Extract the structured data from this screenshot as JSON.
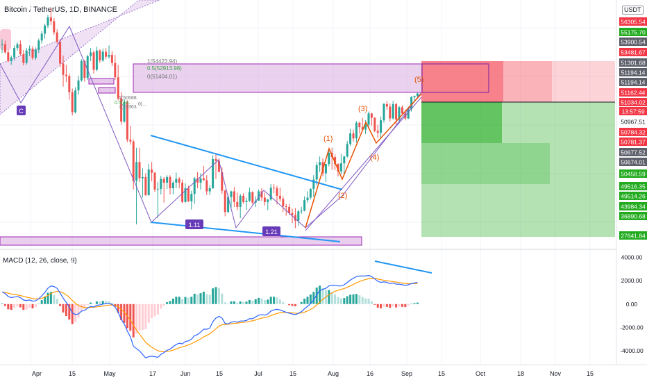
{
  "header": {
    "title": "Bitcoin / TetherUS, 1D, BINANCE",
    "currency_badge": "USDT"
  },
  "macd": {
    "title": "MACD (12, 26, close, 9)",
    "scale_labels": [
      "4000.00",
      "2000.00",
      "0.00",
      "-2000.00",
      "-4000.00"
    ]
  },
  "colors": {
    "up": "#26a69a",
    "down": "#ef5350",
    "macd_line": "#2962ff",
    "signal_line": "#ff9800",
    "zone": "#ce93d8",
    "trendline": "#2196f3",
    "wave": "#e65100",
    "badge": "#673ab7",
    "stop_zone": "#f23645",
    "target_zone": "#22ab1f"
  },
  "x_axis": {
    "labels": [
      "Apr",
      "15",
      "May",
      "17",
      "Jun",
      "15",
      "Jul",
      "15",
      "Aug",
      "16",
      "Sep",
      "15",
      "Oct",
      "18",
      "Nov",
      "15"
    ]
  },
  "price_scale": {
    "labels": [
      "56305.54",
      "55175.70",
      "53900.54",
      "53481.67",
      "51301.68",
      "51194.14",
      "51194.14",
      "51162.44",
      "51034.02",
      "13:57:59",
      "50967.51",
      "50784.32",
      "50781.37",
      "50677.52",
      "50674.01",
      "50458.59",
      "49516.35",
      "49514.26",
      "43984.34",
      "36890.68",
      "27641.84"
    ]
  },
  "fib": {
    "level_1": "1(54423.94)",
    "level_05": "0.5(52913.98)",
    "level_0": "0(51404.01)",
    "small_1": "1(50688.",
    "small_05": "0.5(49…",
    "small_0": "1(49363.",
    "small_0b": "0(…"
  },
  "waves": {
    "w1": "(1)",
    "w2": "(2)",
    "w3": "(3)",
    "w4": "(4)",
    "w5": "(5)"
  },
  "badges": {
    "c": "C",
    "ratio_a": "1.11",
    "ratio_b": "1.21"
  },
  "chart_data": {
    "type": "candlestick",
    "title": "Bitcoin / TetherUS, 1D, BINANCE",
    "interval": "1D",
    "ohlc": [
      [
        58800,
        59700,
        57500,
        58900
      ],
      [
        58900,
        59500,
        57400,
        57600
      ],
      [
        57600,
        58000,
        56000,
        56200
      ],
      [
        56200,
        57100,
        55600,
        56800
      ],
      [
        56800,
        58700,
        56300,
        58300
      ],
      [
        58300,
        59200,
        57900,
        58900
      ],
      [
        58900,
        59500,
        57100,
        57300
      ],
      [
        57300,
        58000,
        55500,
        55900
      ],
      [
        55900,
        58300,
        55600,
        57900
      ],
      [
        57900,
        58700,
        57000,
        58200
      ],
      [
        58200,
        58600,
        56400,
        56700
      ],
      [
        56700,
        58400,
        56400,
        58000
      ],
      [
        58000,
        59800,
        57500,
        59500
      ],
      [
        59500,
        61000,
        59000,
        60600
      ],
      [
        60600,
        62200,
        59800,
        61900
      ],
      [
        61900,
        63600,
        61500,
        63200
      ],
      [
        63200,
        64800,
        62000,
        62600
      ],
      [
        62600,
        63100,
        60400,
        60800
      ],
      [
        60800,
        61300,
        59000,
        59300
      ],
      [
        59300,
        59700,
        55200,
        55800
      ],
      [
        55800,
        57100,
        52100,
        54000
      ],
      [
        54000,
        55600,
        52800,
        53800
      ],
      [
        53800,
        54200,
        50000,
        51200
      ],
      [
        51200,
        51800,
        47500,
        48000
      ],
      [
        48000,
        52000,
        47800,
        51500
      ],
      [
        51500,
        53800,
        50800,
        53100
      ],
      [
        53100,
        56500,
        52900,
        56200
      ],
      [
        56200,
        56400,
        52900,
        53500
      ],
      [
        53500,
        57200,
        53200,
        57000
      ],
      [
        57000,
        58300,
        56200,
        57600
      ],
      [
        57600,
        57900,
        54200,
        54800
      ],
      [
        54800,
        58500,
        54600,
        57900
      ],
      [
        57900,
        58100,
        55900,
        56300
      ],
      [
        56300,
        58200,
        56100,
        57700
      ],
      [
        57700,
        58300,
        56500,
        56900
      ],
      [
        56900,
        58700,
        56600,
        57200
      ],
      [
        57200,
        57800,
        55400,
        55900
      ],
      [
        55900,
        57200,
        53200,
        53600
      ],
      [
        53600,
        55600,
        49900,
        50200
      ],
      [
        50200,
        51200,
        46000,
        46500
      ],
      [
        46500,
        50100,
        46300,
        49600
      ],
      [
        49600,
        49900,
        43200,
        43600
      ],
      [
        43600,
        45800,
        42800,
        43300
      ],
      [
        43300,
        43600,
        35600,
        37000
      ],
      [
        37000,
        42300,
        30000,
        40000
      ],
      [
        40000,
        42300,
        36800,
        37400
      ],
      [
        37400,
        39000,
        34300,
        37600
      ],
      [
        37600,
        38200,
        34600,
        34700
      ],
      [
        34700,
        39700,
        34600,
        38800
      ],
      [
        38800,
        40000,
        36900,
        38300
      ],
      [
        38300,
        38400,
        35200,
        35600
      ],
      [
        35600,
        36800,
        31000,
        35700
      ],
      [
        35700,
        37800,
        34800,
        37300
      ],
      [
        37300,
        37600,
        33500,
        36700
      ],
      [
        36700,
        37900,
        35700,
        37600
      ],
      [
        37600,
        37900,
        34800,
        35800
      ],
      [
        35800,
        37000,
        34800,
        36700
      ],
      [
        36700,
        38300,
        35800,
        37300
      ],
      [
        37300,
        37600,
        35800,
        36700
      ],
      [
        36700,
        37200,
        33400,
        33600
      ],
      [
        33600,
        36600,
        33500,
        35800
      ],
      [
        35800,
        36200,
        33600,
        33700
      ],
      [
        33700,
        35400,
        32400,
        34900
      ],
      [
        34900,
        37600,
        33300,
        37400
      ],
      [
        37400,
        38400,
        35800,
        36700
      ],
      [
        36700,
        38200,
        35600,
        37400
      ],
      [
        37400,
        39400,
        37000,
        37100
      ],
      [
        37100,
        37900,
        34700,
        35300
      ],
      [
        35300,
        36300,
        34700,
        35800
      ],
      [
        35800,
        41100,
        35700,
        40500
      ],
      [
        40500,
        41300,
        37300,
        40200
      ],
      [
        40200,
        40600,
        38500,
        38400
      ],
      [
        38400,
        39200,
        34900,
        35400
      ],
      [
        35400,
        35600,
        31300,
        32000
      ],
      [
        32000,
        34800,
        31800,
        34400
      ],
      [
        34400,
        35400,
        32600,
        35300
      ],
      [
        35300,
        36000,
        32800,
        33600
      ],
      [
        33600,
        35100,
        32300,
        32800
      ],
      [
        32800,
        34900,
        31000,
        34600
      ],
      [
        34600,
        35000,
        33300,
        33600
      ],
      [
        33600,
        34300,
        32300,
        33800
      ],
      [
        33800,
        35900,
        33600,
        35200
      ],
      [
        35200,
        35300,
        33200,
        33500
      ],
      [
        33500,
        34500,
        32800,
        33800
      ],
      [
        33800,
        35600,
        33800,
        35300
      ],
      [
        35300,
        35800,
        33800,
        34300
      ],
      [
        34300,
        35100,
        33000,
        33600
      ],
      [
        33600,
        34100,
        32300,
        34000
      ],
      [
        34000,
        36500,
        33800,
        35900
      ],
      [
        35900,
        36500,
        35000,
        35800
      ],
      [
        35800,
        36200,
        33200,
        34600
      ],
      [
        34600,
        35900,
        33700,
        34100
      ],
      [
        34100,
        34500,
        32000,
        32900
      ],
      [
        32900,
        33300,
        31400,
        32800
      ],
      [
        32800,
        33300,
        31600,
        31800
      ],
      [
        31800,
        32500,
        30200,
        31500
      ],
      [
        31500,
        32600,
        29400,
        30600
      ],
      [
        30600,
        32300,
        29800,
        32100
      ],
      [
        32100,
        32800,
        31700,
        32200
      ],
      [
        32200,
        34500,
        32100,
        33900
      ],
      [
        33900,
        35300,
        33500,
        34300
      ],
      [
        34300,
        35800,
        34000,
        35700
      ],
      [
        35700,
        37900,
        34400,
        37200
      ],
      [
        37200,
        40000,
        36300,
        39500
      ],
      [
        39500,
        40900,
        38400,
        40000
      ],
      [
        40000,
        40600,
        37700,
        38200
      ],
      [
        38200,
        39700,
        36800,
        39700
      ],
      [
        39700,
        42000,
        39300,
        41500
      ],
      [
        41500,
        42300,
        38800,
        40800
      ],
      [
        40800,
        41200,
        38700,
        39700
      ],
      [
        39700,
        39800,
        37700,
        38500
      ],
      [
        38500,
        41300,
        38100,
        39800
      ],
      [
        39800,
        41000,
        38100,
        40900
      ],
      [
        40900,
        43400,
        40700,
        42900
      ],
      [
        42900,
        45300,
        42600,
        44600
      ],
      [
        44600,
        45200,
        43300,
        43800
      ],
      [
        43800,
        46600,
        43100,
        46300
      ],
      [
        46300,
        46500,
        44600,
        45600
      ],
      [
        45600,
        47100,
        45300,
        45200
      ],
      [
        45200,
        46700,
        44500,
        46000
      ],
      [
        46000,
        48100,
        45600,
        47800
      ],
      [
        47800,
        47900,
        45800,
        47100
      ],
      [
        47100,
        47200,
        44800,
        45000
      ],
      [
        45000,
        46000,
        43900,
        44700
      ],
      [
        44700,
        47300,
        43800,
        46700
      ],
      [
        46700,
        49500,
        46300,
        49300
      ],
      [
        49300,
        49800,
        48400,
        48900
      ],
      [
        48900,
        49400,
        46500,
        47000
      ],
      [
        47000,
        49800,
        46800,
        49300
      ],
      [
        49300,
        49500,
        46000,
        46800
      ],
      [
        46800,
        49000,
        46400,
        48800
      ],
      [
        48800,
        49100,
        47700,
        47800
      ],
      [
        47800,
        48400,
        46700,
        47000
      ],
      [
        47000,
        48900,
        46900,
        48500
      ],
      [
        48500,
        50600,
        48100,
        50400
      ],
      [
        50400,
        50700,
        49800,
        50600
      ],
      [
        50600,
        51100,
        50400,
        51000
      ]
    ],
    "macd": [
      1050,
      900,
      650,
      550,
      600,
      650,
      550,
      350,
      300,
      350,
      250,
      280,
      450,
      700,
      1000,
      1350,
      1550,
      1500,
      1350,
      950,
      500,
      150,
      -250,
      -750,
      -900,
      -850,
      -600,
      -550,
      -350,
      -200,
      -250,
      -100,
      -80,
      0,
      30,
      50,
      -20,
      -250,
      -700,
      -1300,
      -1700,
      -2300,
      -2800,
      -3600,
      -3800,
      -4000,
      -4300,
      -4600,
      -4500,
      -4450,
      -4500,
      -4550,
      -4300,
      -4150,
      -3950,
      -3850,
      -3650,
      -3450,
      -3350,
      -3400,
      -3200,
      -3150,
      -3000,
      -2700,
      -2600,
      -2400,
      -2150,
      -2150,
      -2050,
      -1500,
      -1200,
      -1050,
      -1200,
      -1650,
      -1700,
      -1550,
      -1500,
      -1550,
      -1450,
      -1450,
      -1400,
      -1250,
      -1250,
      -1100,
      -950,
      -900,
      -950,
      -850,
      -600,
      -500,
      -450,
      -500,
      -600,
      -700,
      -780,
      -850,
      -900,
      -800,
      -650,
      -400,
      -200,
      50,
      350,
      800,
      1150,
      1250,
      1350,
      1550,
      1600,
      1600,
      1550,
      1550,
      1650,
      1850,
      2050,
      2200,
      2350,
      2400,
      2400,
      2400,
      2450,
      2350,
      2150,
      1950,
      1850,
      1900,
      1850,
      1750,
      1800,
      1700,
      1700,
      1650,
      1600,
      1650,
      1750,
      1800,
      1850
    ],
    "signal": [
      1020,
      1000,
      930,
      860,
      810,
      780,
      730,
      660,
      590,
      540,
      480,
      440,
      440,
      490,
      590,
      740,
      900,
      1020,
      1080,
      1060,
      950,
      790,
      580,
      320,
      70,
      -120,
      -220,
      -290,
      -300,
      -280,
      -270,
      -240,
      -210,
      -170,
      -130,
      -90,
      -75,
      -110,
      -230,
      -440,
      -690,
      -1010,
      -1370,
      -1820,
      -2210,
      -2570,
      -2920,
      -3260,
      -3500,
      -3690,
      -3850,
      -3990,
      -4050,
      -4070,
      -4050,
      -4010,
      -3940,
      -3840,
      -3740,
      -3670,
      -3580,
      -3490,
      -3390,
      -3250,
      -3120,
      -2980,
      -2810,
      -2680,
      -2550,
      -2340,
      -2110,
      -1900,
      -1760,
      -1740,
      -1730,
      -1690,
      -1650,
      -1630,
      -1590,
      -1560,
      -1530,
      -1470,
      -1430,
      -1360,
      -1280,
      -1200,
      -1160,
      -1090,
      -990,
      -890,
      -800,
      -740,
      -710,
      -710,
      -720,
      -750,
      -780,
      -790,
      -760,
      -690,
      -590,
      -460,
      -300,
      -80,
      170,
      400,
      600,
      800,
      960,
      1090,
      1180,
      1250,
      1330,
      1430,
      1550,
      1680,
      1810,
      1930,
      2020,
      2100,
      2170,
      2200,
      2190,
      2140,
      2080,
      2040,
      2000,
      1950,
      1920,
      1880,
      1840,
      1800,
      1760,
      1740,
      1740,
      1750,
      1770
    ],
    "macd_ylim": [
      -5000,
      4500
    ],
    "price_ylim": [
      26000,
      66000
    ],
    "fib_levels": [
      54423.94,
      52913.98,
      51404.01
    ],
    "position": {
      "entry": 51034.02,
      "stop": 53481.67,
      "targets": [
        49516.35,
        43984.34,
        36890.68,
        27641.84
      ]
    },
    "grid": true
  }
}
